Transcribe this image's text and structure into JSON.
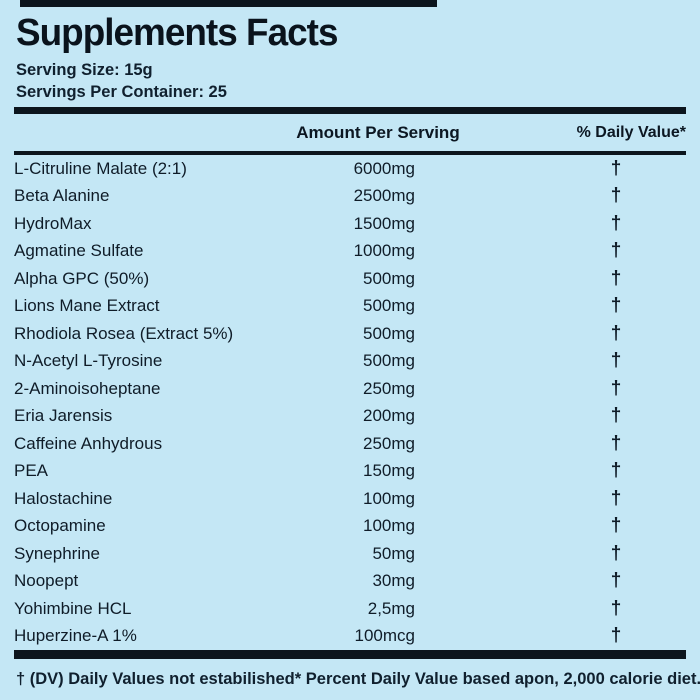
{
  "title": "Supplements Facts",
  "serving": {
    "size": "Serving Size: 15g",
    "per_container": "Servings Per Container: 25"
  },
  "table": {
    "amount_header": "Amount Per Serving",
    "dv_header": "% Daily Value*",
    "rows": [
      {
        "name": "L-Citruline Malate (2:1)",
        "amount": "6000mg",
        "dv": "†"
      },
      {
        "name": "Beta Alanine",
        "amount": "2500mg",
        "dv": "†"
      },
      {
        "name": "HydroMax",
        "amount": "1500mg",
        "dv": "†"
      },
      {
        "name": "Agmatine Sulfate",
        "amount": "1000mg",
        "dv": "†"
      },
      {
        "name": "Alpha GPC (50%)",
        "amount": "500mg",
        "dv": "†"
      },
      {
        "name": "Lions Mane Extract",
        "amount": "500mg",
        "dv": "†"
      },
      {
        "name": "Rhodiola Rosea (Extract 5%)",
        "amount": "500mg",
        "dv": "†"
      },
      {
        "name": "N-Acetyl L-Tyrosine",
        "amount": "500mg",
        "dv": "†"
      },
      {
        "name": "2-Aminoisoheptane",
        "amount": "250mg",
        "dv": "†"
      },
      {
        "name": "Eria Jarensis",
        "amount": "200mg",
        "dv": "†"
      },
      {
        "name": "Caffeine Anhydrous",
        "amount": "250mg",
        "dv": "†"
      },
      {
        "name": "PEA",
        "amount": "150mg",
        "dv": "†"
      },
      {
        "name": "Halostachine",
        "amount": "100mg",
        "dv": "†"
      },
      {
        "name": "Octopamine",
        "amount": "100mg",
        "dv": "†"
      },
      {
        "name": "Synephrine",
        "amount": "50mg",
        "dv": "†"
      },
      {
        "name": "Noopept",
        "amount": "30mg",
        "dv": "†"
      },
      {
        "name": "Yohimbine HCL",
        "amount": "2,5mg",
        "dv": "†"
      },
      {
        "name": "Huperzine-A 1%",
        "amount": "100mcg",
        "dv": "†"
      }
    ]
  },
  "footnotes": {
    "left": "† (DV) Daily Values not estabilished",
    "right": "* Percent Daily Value based apon, 2,000 calorie diet."
  },
  "colors": {
    "background": "#c4e7f5",
    "text": "#0f1c28",
    "rule": "#0c151d"
  }
}
